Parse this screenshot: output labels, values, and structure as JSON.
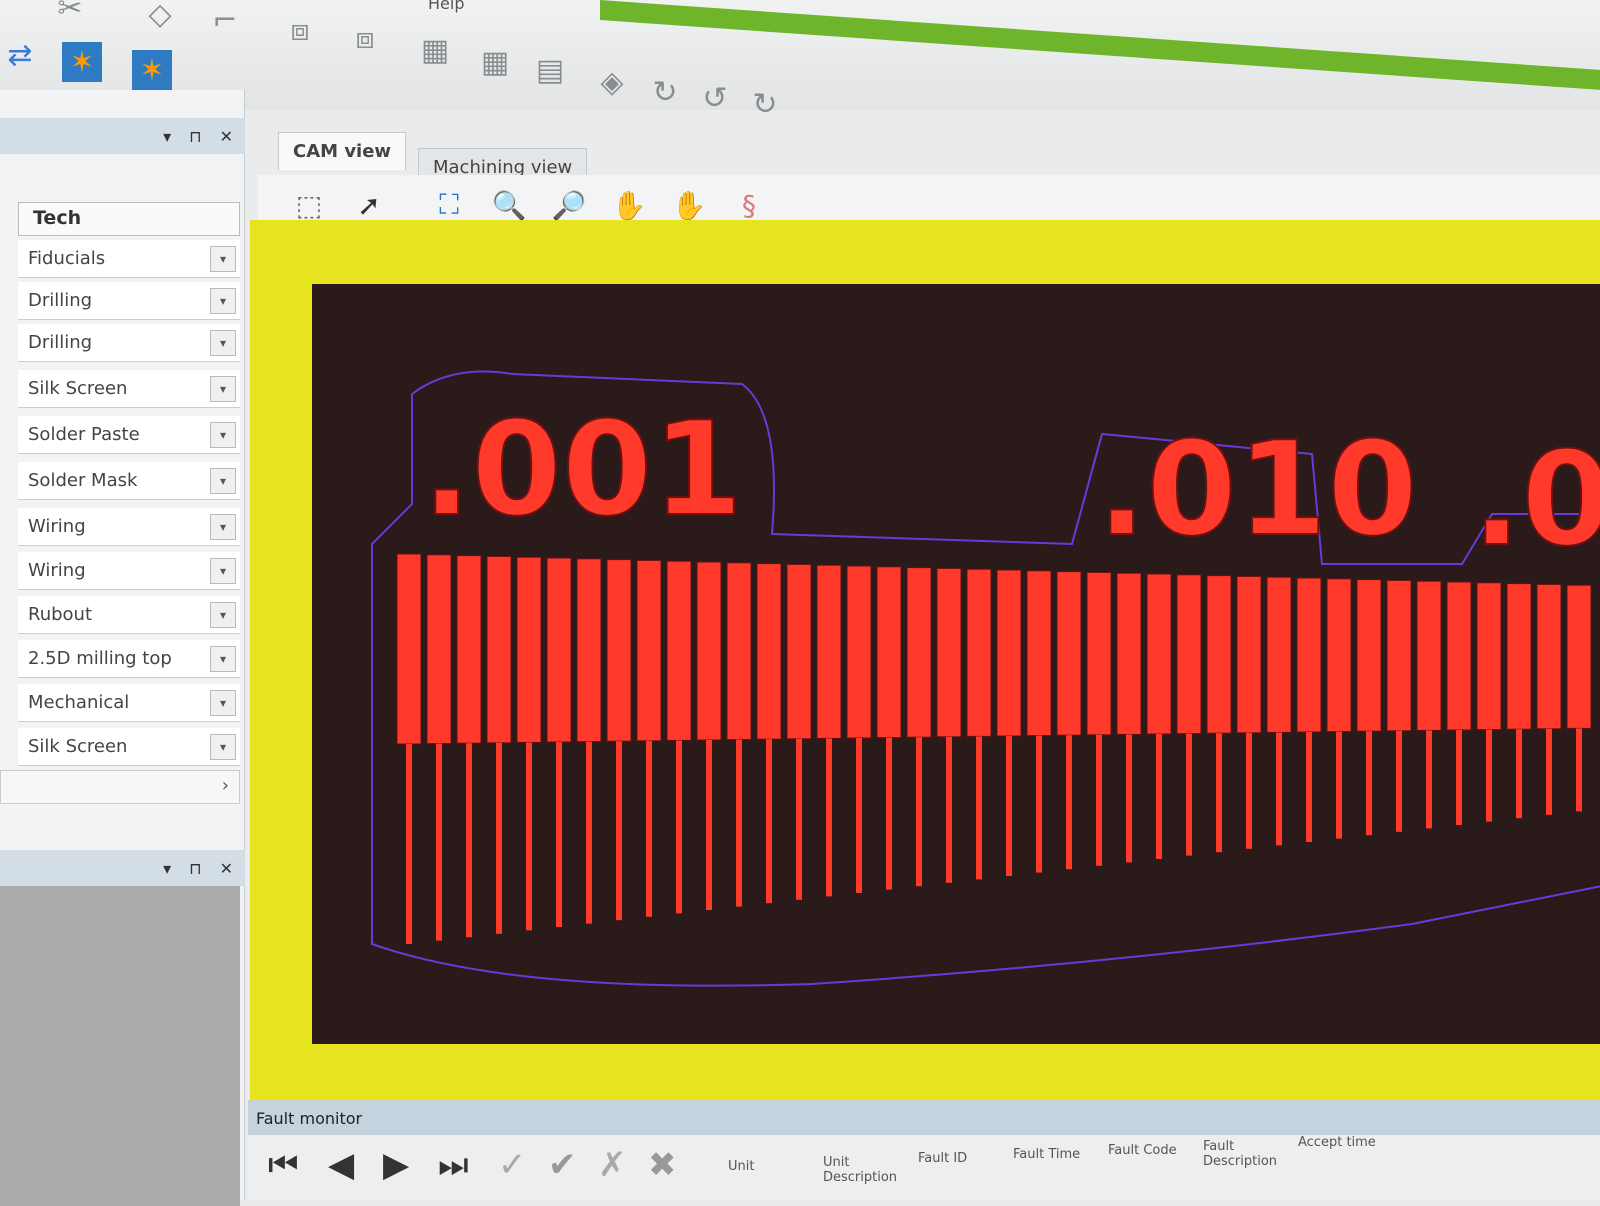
{
  "menu": {
    "help": "Help"
  },
  "left_panel": {
    "header": "Tech",
    "layers": [
      "Fiducials",
      "Drilling",
      "Drilling",
      "Silk Screen",
      "Solder Paste",
      "Solder Mask",
      "Wiring",
      "Wiring",
      "Rubout",
      "2.5D milling top",
      "Mechanical",
      "Silk Screen"
    ],
    "pin": "⊓",
    "close": "✕",
    "dropdown": "▾",
    "scroll_right": "›"
  },
  "tabs": [
    {
      "label": "CAM view",
      "active": true
    },
    {
      "label": "Machining view",
      "active": false
    }
  ],
  "board": {
    "labels": [
      ".001",
      ".010",
      ".0"
    ],
    "colors": {
      "canvas": "#e6e41f",
      "board": "#2b1a1a",
      "copper": "#ff3a2a",
      "outline": "#6a3ad8"
    }
  },
  "fault_monitor": {
    "title": "Fault monitor",
    "columns": [
      "Unit",
      "Unit Description",
      "Fault ID",
      "Fault Time",
      "Fault Code",
      "Fault Description",
      "Accept time"
    ]
  }
}
